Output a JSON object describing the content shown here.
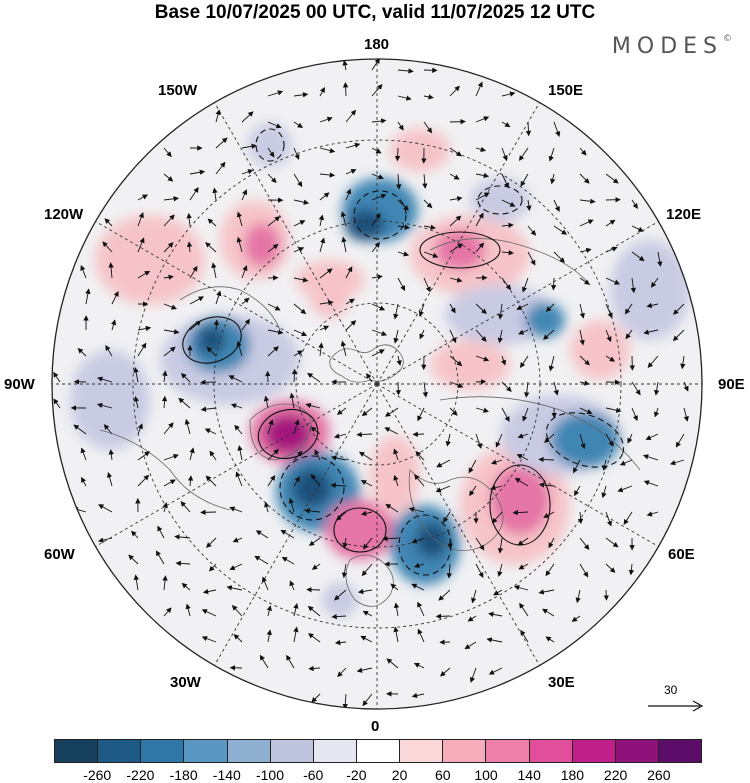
{
  "title": "Base 10/07/2025 00 UTC, valid 11/07/2025 12 UTC",
  "logo": "MODES",
  "logo_mark": "©",
  "map": {
    "longitude_labels": {
      "top": "180",
      "upper_left": "150W",
      "upper_right": "150E",
      "mid_upper_left": "120W",
      "mid_upper_right": "120E",
      "left": "90W",
      "right": "90E",
      "mid_lower_left": "60W",
      "mid_lower_right": "60E",
      "lower_left": "30W",
      "lower_right": "30E",
      "bottom": "0"
    },
    "vector_reference": "30",
    "colors": {
      "strong_negative": "#1f4f7a",
      "negative": "#3f86b4",
      "weak_negative": "#c9cbe3",
      "near_zero": "#ffffff",
      "weak_positive": "#f6c4c8",
      "positive": "#e574a6",
      "strong_positive": "#a4157e"
    }
  },
  "colorbar": {
    "colors": [
      "#17405f",
      "#1f5a86",
      "#2f77a7",
      "#5a97c2",
      "#8fb0d0",
      "#bfc5de",
      "#e6e6f0",
      "#ffffff",
      "#fbd9da",
      "#f6aebc",
      "#ee7fa8",
      "#e04e9c",
      "#c01f8a",
      "#8e127a",
      "#5c0c69"
    ],
    "ticks": [
      "-260",
      "-220",
      "-180",
      "-140",
      "-100",
      "-60",
      "-20",
      "20",
      "60",
      "100",
      "140",
      "180",
      "220",
      "260"
    ]
  }
}
